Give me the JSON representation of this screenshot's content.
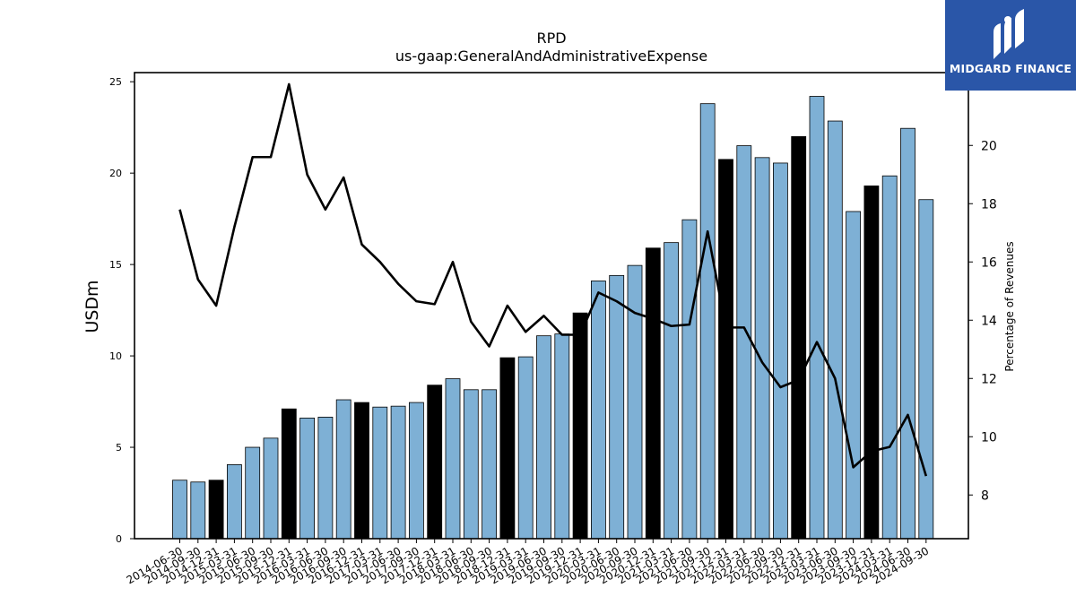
{
  "chart_data": {
    "type": "bar",
    "title": "RPD",
    "subtitle": "us-gaap:GeneralAndAdministrativeExpense",
    "ylabel": "USDm",
    "ylabel_right": "Percentage of Revenues",
    "ylim": [
      0,
      25.5
    ],
    "ylim_right": [
      6.5,
      22.5
    ],
    "yticks": [
      0,
      5,
      10,
      15,
      20,
      25
    ],
    "yticks_right": [
      8,
      10,
      12,
      14,
      16,
      18,
      20
    ],
    "categories": [
      "2014-06-30",
      "2014-09-30",
      "2014-12-31",
      "2015-03-31",
      "2015-06-30",
      "2015-09-30",
      "2015-12-31",
      "2016-03-31",
      "2016-06-30",
      "2016-09-30",
      "2016-12-31",
      "2017-03-31",
      "2017-06-30",
      "2017-09-30",
      "2017-12-31",
      "2018-03-31",
      "2018-06-30",
      "2018-09-30",
      "2018-12-31",
      "2019-03-31",
      "2019-06-30",
      "2019-09-30",
      "2019-12-31",
      "2020-03-31",
      "2020-06-30",
      "2020-09-30",
      "2020-12-31",
      "2021-03-31",
      "2021-06-30",
      "2021-09-30",
      "2021-12-31",
      "2022-03-31",
      "2022-06-30",
      "2022-09-30",
      "2022-12-31",
      "2023-03-31",
      "2023-06-30",
      "2023-09-30",
      "2023-12-31",
      "2024-03-31",
      "2024-06-30",
      "2024-09-30"
    ],
    "series": [
      {
        "kind": "bar",
        "axis": "left",
        "values": [
          3.2,
          3.1,
          3.2,
          4.05,
          5.0,
          5.5,
          7.1,
          6.6,
          6.65,
          7.6,
          7.45,
          7.2,
          7.25,
          7.45,
          8.4,
          8.75,
          8.15,
          8.15,
          9.9,
          9.95,
          11.1,
          11.2,
          12.35,
          14.1,
          14.4,
          14.95,
          15.9,
          16.2,
          17.45,
          23.8,
          20.75,
          21.5,
          20.85,
          20.55,
          22.0,
          24.2,
          22.85,
          17.9,
          19.3,
          19.85,
          22.45,
          18.55
        ],
        "highlight": [
          false,
          false,
          true,
          false,
          false,
          false,
          true,
          false,
          false,
          false,
          true,
          false,
          false,
          false,
          true,
          false,
          false,
          false,
          true,
          false,
          false,
          false,
          true,
          false,
          false,
          false,
          true,
          false,
          false,
          false,
          true,
          false,
          false,
          false,
          true,
          false,
          false,
          false,
          true,
          false,
          false,
          false
        ],
        "color": "#7eb0d5",
        "highlight_color": "#000000"
      },
      {
        "kind": "line",
        "axis": "right",
        "values": [
          17.8,
          15.4,
          14.5,
          17.2,
          19.6,
          19.6,
          22.1,
          19.0,
          17.8,
          18.9,
          16.6,
          16.0,
          15.25,
          14.65,
          14.55,
          16.0,
          13.95,
          13.1,
          14.5,
          13.6,
          14.15,
          13.5,
          13.5,
          14.95,
          14.65,
          14.25,
          14.05,
          13.8,
          13.85,
          17.05,
          13.75,
          13.75,
          12.55,
          11.7,
          11.95,
          13.25,
          12.0,
          8.95,
          9.5,
          9.65,
          10.75,
          8.65
        ],
        "color": "#000000"
      }
    ],
    "grid": false,
    "legend": "none"
  },
  "logo": {
    "text": "MIDGARD FINANCE",
    "icon": "midgard-logo-icon",
    "background": "#2a56a8"
  }
}
